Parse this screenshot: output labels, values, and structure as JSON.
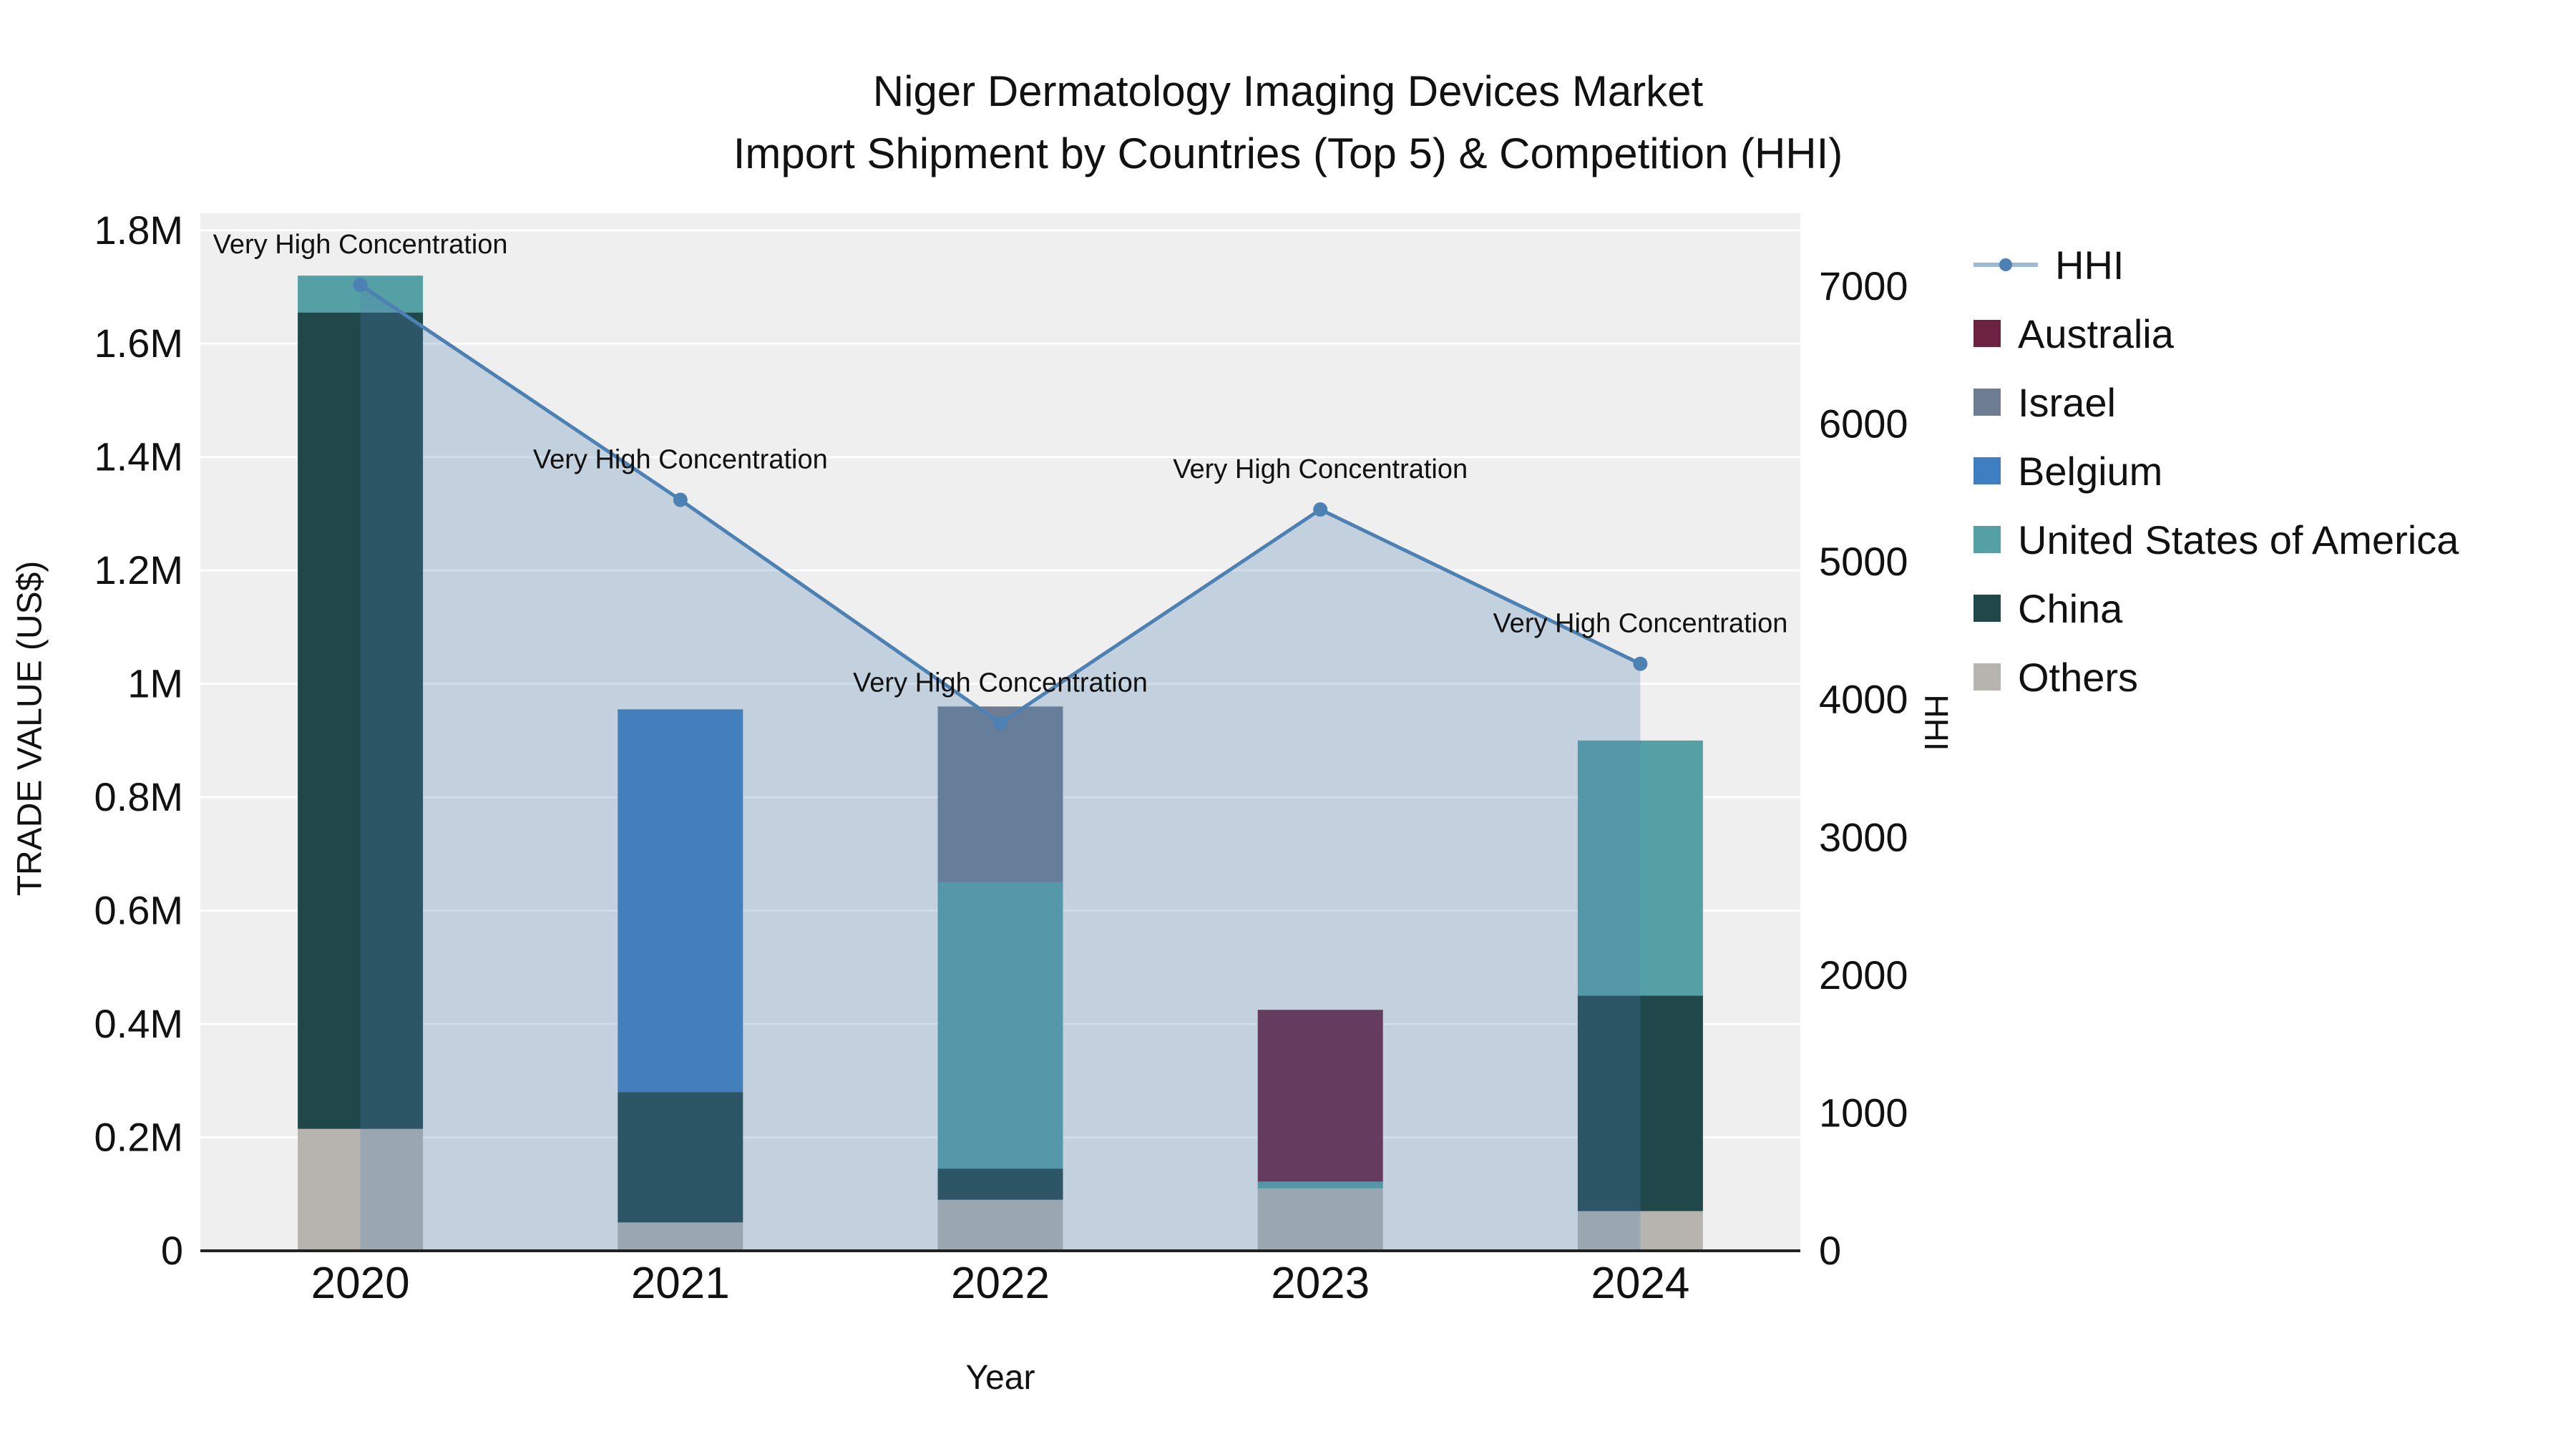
{
  "chart_data": {
    "type": "combo-stacked-bar-line",
    "title_line1": "Niger Dermatology Imaging Devices Market",
    "title_line2": "Import Shipment by Countries (Top 5) & Competition (HHI)",
    "x_label": "Year",
    "y_left_label": "TRADE VALUE (US$)",
    "y_right_label": "HHI",
    "categories": [
      "2020",
      "2021",
      "2022",
      "2023",
      "2024"
    ],
    "y_left": {
      "max": 1830000,
      "ticks": [
        0,
        200000,
        400000,
        600000,
        800000,
        1000000,
        1200000,
        1400000,
        1600000,
        1800000
      ],
      "tick_labels": [
        "0",
        "0.2M",
        "0.4M",
        "0.6M",
        "0.8M",
        "1M",
        "1.2M",
        "1.4M",
        "1.6M",
        "1.8M"
      ]
    },
    "y_right": {
      "max": 7530,
      "ticks": [
        0,
        1000,
        2000,
        3000,
        4000,
        5000,
        6000,
        7000
      ],
      "tick_labels": [
        "0",
        "1000",
        "2000",
        "3000",
        "4000",
        "5000",
        "6000",
        "7000"
      ]
    },
    "bar_series": [
      {
        "name": "Others",
        "color": "#b7b4b0",
        "values": [
          215000,
          50000,
          90000,
          110000,
          70000
        ]
      },
      {
        "name": "China",
        "color": "#20474a",
        "values": [
          1440000,
          230000,
          55000,
          0,
          380000
        ]
      },
      {
        "name": "United States of America",
        "color": "#55a0a5",
        "values": [
          65000,
          0,
          505000,
          12000,
          450000
        ]
      },
      {
        "name": "Belgium",
        "color": "#3f7fc1",
        "values": [
          0,
          675000,
          0,
          0,
          0
        ]
      },
      {
        "name": "Israel",
        "color": "#6f7d92",
        "values": [
          0,
          0,
          310000,
          0,
          0
        ]
      },
      {
        "name": "Australia",
        "color": "#6e2242",
        "values": [
          0,
          0,
          0,
          303000,
          0
        ]
      }
    ],
    "line_series": {
      "name": "HHI",
      "color": "#4d80b3",
      "area_fill": "rgba(77, 128, 179, 0.27)",
      "values": [
        7010,
        5450,
        3830,
        5380,
        4260
      ]
    },
    "annotation_text": "Very High Concentration",
    "legend": [
      {
        "label": "HHI",
        "symbol": "line",
        "color": "#4d80b3"
      },
      {
        "label": "Australia",
        "symbol": "square",
        "color": "#6e2242"
      },
      {
        "label": "Israel",
        "symbol": "square",
        "color": "#6f7d92"
      },
      {
        "label": "Belgium",
        "symbol": "square",
        "color": "#3f7fc1"
      },
      {
        "label": "United States of America",
        "symbol": "square",
        "color": "#55a0a5"
      },
      {
        "label": "China",
        "symbol": "square",
        "color": "#20474a"
      },
      {
        "label": "Others",
        "symbol": "square",
        "color": "#b7b4b0"
      }
    ],
    "plot_bg": "#efefef",
    "grid_color": "#ffffff",
    "axis_line_color": "#222222"
  }
}
